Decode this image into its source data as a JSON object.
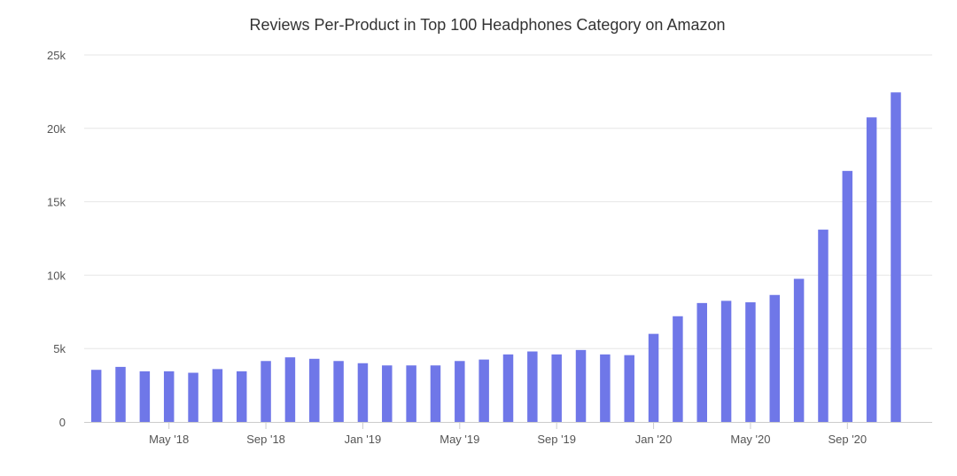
{
  "chart_data": {
    "type": "bar",
    "title": "Reviews Per-Product in Top 100 Headphones Category on Amazon",
    "xlabel": "",
    "ylabel": "",
    "ylim": [
      0,
      25000
    ],
    "y_ticks": [
      0,
      5000,
      10000,
      15000,
      20000,
      25000
    ],
    "y_tick_labels": [
      "0",
      "5k",
      "10k",
      "15k",
      "20k",
      "25k"
    ],
    "categories": [
      "Feb '18",
      "Mar '18",
      "Apr '18",
      "May '18",
      "Jun '18",
      "Jul '18",
      "Aug '18",
      "Sep '18",
      "Oct '18",
      "Nov '18",
      "Dec '18",
      "Jan '19",
      "Feb '19",
      "Mar '19",
      "Apr '19",
      "May '19",
      "Jun '19",
      "Jul '19",
      "Aug '19",
      "Sep '19",
      "Oct '19",
      "Nov '19",
      "Dec '19",
      "Jan '20",
      "Feb '20",
      "Mar '20",
      "Apr '20",
      "May '20",
      "Jun '20",
      "Jul '20",
      "Aug '20",
      "Sep '20",
      "Oct '20",
      "Nov '20",
      "Dec '20"
    ],
    "x_tick_labels": [
      "May '18",
      "Sep '18",
      "Jan '19",
      "May '19",
      "Sep '19",
      "Jan '20",
      "May '20",
      "Sep '20"
    ],
    "series": [
      {
        "name": "Reviews per product",
        "color": "#6f77e8",
        "values": [
          3550,
          3750,
          3450,
          3450,
          3350,
          3600,
          3450,
          4150,
          4400,
          4300,
          4150,
          4000,
          3850,
          3850,
          3850,
          4150,
          4250,
          4600,
          4800,
          4600,
          4900,
          4600,
          4550,
          6000,
          7200,
          8100,
          8250,
          8150,
          8650,
          9750,
          13100,
          17100,
          20750,
          22450,
          0
        ]
      }
    ],
    "grid": true,
    "gridline_color": "#e6e6e6",
    "axis_color": "#cccccc"
  }
}
